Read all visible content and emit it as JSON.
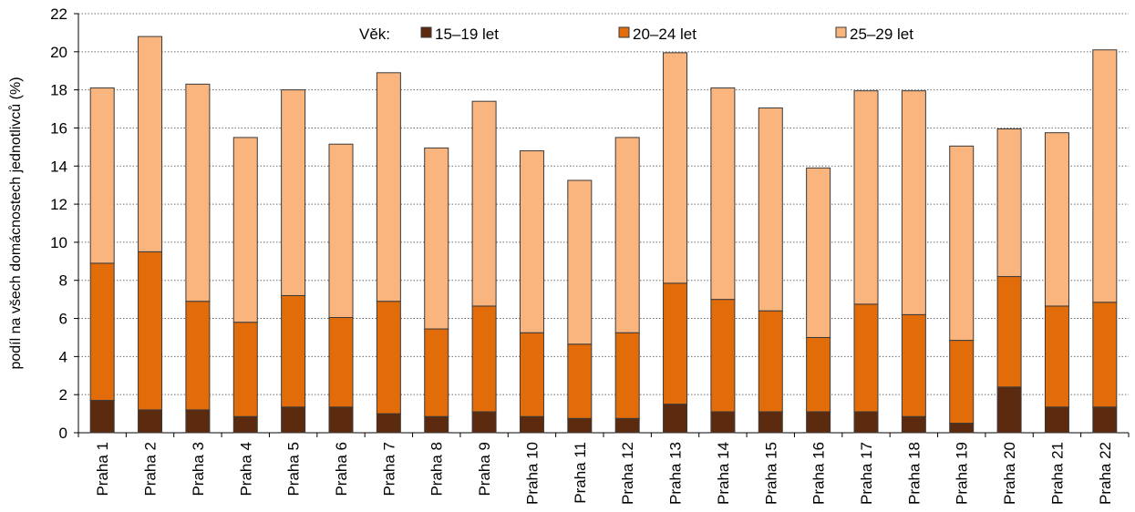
{
  "chart_data": {
    "type": "bar",
    "stacked": true,
    "ylabel": "podíl na všech domácnostech jednotlivců (%)",
    "ylim": [
      0,
      22
    ],
    "yticks": [
      0,
      2,
      4,
      6,
      8,
      10,
      12,
      14,
      16,
      18,
      20,
      22
    ],
    "grid": true,
    "legend_title": "Věk:",
    "legend_position": "top",
    "categories": [
      "Praha 1",
      "Praha 2",
      "Praha 3",
      "Praha 4",
      "Praha 5",
      "Praha 6",
      "Praha 7",
      "Praha 8",
      "Praha 9",
      "Praha 10",
      "Praha 11",
      "Praha 12",
      "Praha 13",
      "Praha 14",
      "Praha 15",
      "Praha 16",
      "Praha 17",
      "Praha 18",
      "Praha 19",
      "Praha 20",
      "Praha 21",
      "Praha 22"
    ],
    "series": [
      {
        "name": "15–19 let",
        "color": "#5c2a0e",
        "values": [
          1.7,
          1.2,
          1.2,
          0.85,
          1.35,
          1.35,
          1.0,
          0.85,
          1.1,
          0.85,
          0.75,
          0.75,
          1.5,
          1.1,
          1.1,
          1.1,
          1.1,
          0.85,
          0.5,
          2.4,
          1.35,
          1.35
        ]
      },
      {
        "name": "20–24 let",
        "color": "#e36c0a",
        "values": [
          7.2,
          8.3,
          5.7,
          4.95,
          5.85,
          4.7,
          5.9,
          4.6,
          5.55,
          4.4,
          3.9,
          4.5,
          6.35,
          5.9,
          5.3,
          3.9,
          5.65,
          5.35,
          4.35,
          5.8,
          5.3,
          5.5
        ]
      },
      {
        "name": "25–29 let",
        "color": "#fab57f",
        "values": [
          9.2,
          11.3,
          11.4,
          9.7,
          10.8,
          9.1,
          12.0,
          9.5,
          10.75,
          9.55,
          8.6,
          10.25,
          12.1,
          11.1,
          10.65,
          8.9,
          11.2,
          11.75,
          10.2,
          7.75,
          9.1,
          13.25
        ]
      }
    ]
  }
}
